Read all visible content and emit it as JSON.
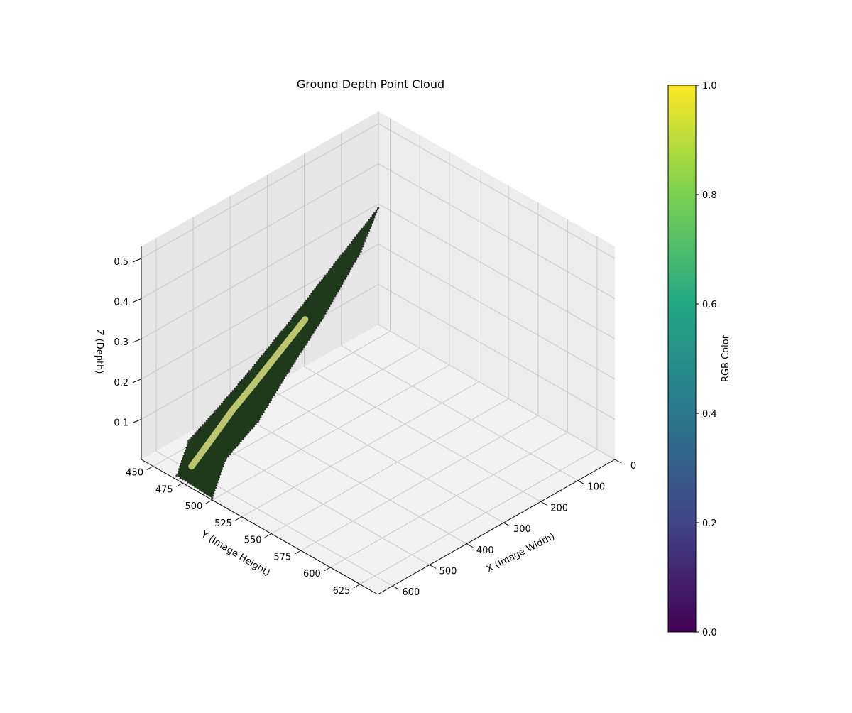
{
  "chart_data": {
    "type": "scatter",
    "projection": "3d",
    "title": "Ground Depth Point Cloud",
    "xlabel": "X (Image Width)",
    "ylabel": "Y (Image Height)",
    "zlabel": "Z (Depth)",
    "xlim": [
      0,
      640
    ],
    "ylim": [
      440,
      640
    ],
    "zlim": [
      0.0,
      0.53
    ],
    "x_ticks": [
      0,
      100,
      200,
      300,
      400,
      500,
      600
    ],
    "y_ticks": [
      450,
      475,
      500,
      525,
      550,
      575,
      600,
      625
    ],
    "z_ticks": [
      0.1,
      0.2,
      0.3,
      0.4,
      0.5
    ],
    "x_tick_labels": [
      "0",
      "100",
      "200",
      "300",
      "400",
      "500",
      "600"
    ],
    "y_tick_labels": [
      "450",
      "475",
      "500",
      "525",
      "550",
      "575",
      "600",
      "625"
    ],
    "z_tick_labels": [
      "0.1",
      "0.2",
      "0.3",
      "0.4",
      "0.5"
    ],
    "grid": true,
    "surface_outline": [
      {
        "x": 10,
        "y": 443,
        "z": 0.3
      },
      {
        "x": 120,
        "y": 445,
        "z": 0.24
      },
      {
        "x": 250,
        "y": 448,
        "z": 0.17
      },
      {
        "x": 380,
        "y": 450,
        "z": 0.1
      },
      {
        "x": 480,
        "y": 452,
        "z": 0.055
      },
      {
        "x": 560,
        "y": 455,
        "z": 0.03
      },
      {
        "x": 640,
        "y": 470,
        "z": 0.01
      },
      {
        "x": 640,
        "y": 500,
        "z": 0.005
      },
      {
        "x": 540,
        "y": 480,
        "z": 0.015
      },
      {
        "x": 420,
        "y": 470,
        "z": 0.03
      },
      {
        "x": 300,
        "y": 458,
        "z": 0.07
      },
      {
        "x": 180,
        "y": 450,
        "z": 0.13
      },
      {
        "x": 60,
        "y": 444,
        "z": 0.22
      }
    ],
    "highlight_band": [
      {
        "x": 600,
        "y": 470,
        "z": 0.012
      },
      {
        "x": 520,
        "y": 462,
        "z": 0.025
      },
      {
        "x": 440,
        "y": 455,
        "z": 0.045
      },
      {
        "x": 380,
        "y": 452,
        "z": 0.065
      },
      {
        "x": 300,
        "y": 449,
        "z": 0.1
      },
      {
        "x": 220,
        "y": 447,
        "z": 0.14
      }
    ],
    "colorbar": {
      "label": "RGB Color",
      "colormap": "viridis",
      "range": [
        0.0,
        1.0
      ],
      "ticks": [
        0.0,
        0.2,
        0.4,
        0.6,
        0.8,
        1.0
      ],
      "tick_labels": [
        "0.0",
        "0.2",
        "0.4",
        "0.6",
        "0.8",
        "1.0"
      ],
      "colors": [
        "#440154",
        "#414487",
        "#2a788e",
        "#22a884",
        "#7ad151",
        "#fde725"
      ]
    },
    "colors": {
      "pane": "#f2f2f2",
      "pane_dark": "#e6e6e6",
      "grid": "#c8c8c8",
      "surface": "#1f3a1a",
      "surface_edge": "#2a2a2a",
      "highlight": "#d8df80"
    }
  }
}
